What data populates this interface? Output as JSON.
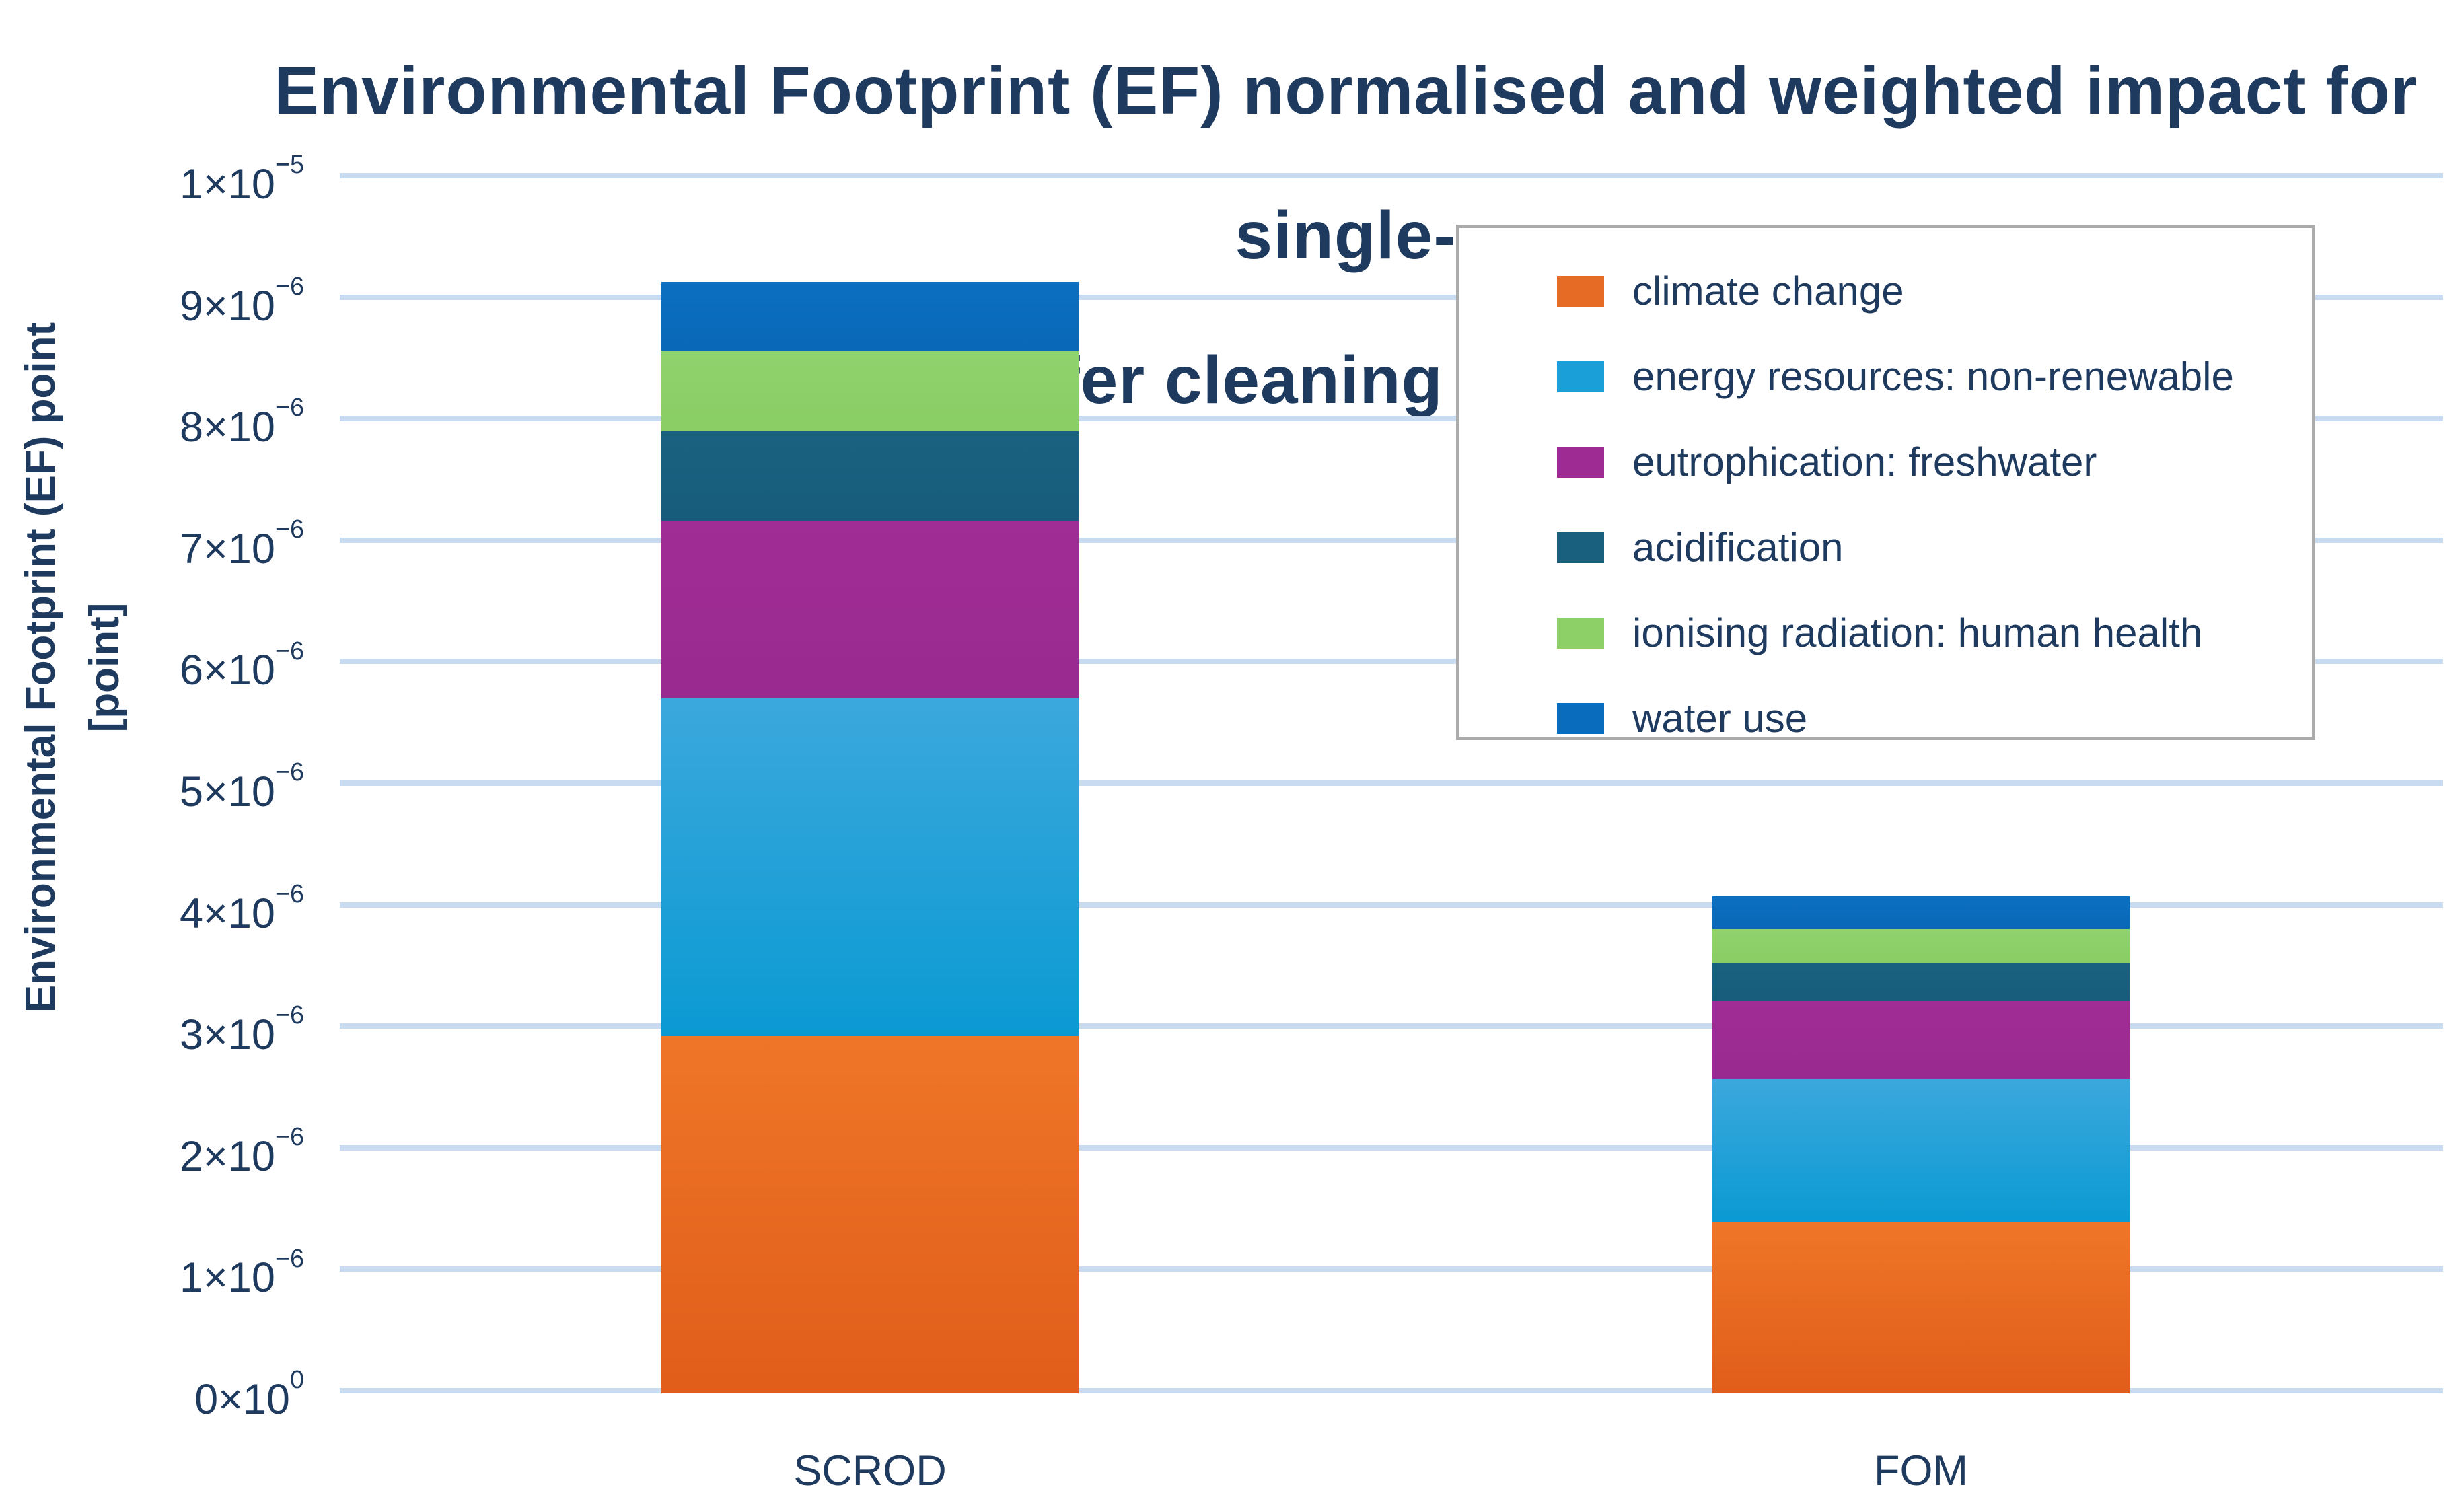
{
  "chart_data": {
    "type": "bar",
    "stacked": true,
    "title": "Environmental Footprint (EF) normalised and weighted impact for single-wafer cleaning process",
    "title_lines": [
      "Environmental Footprint (EF) normalised and weighted impact for single-",
      "wafer cleaning process"
    ],
    "ylabel": "Environmental Footprint (EF) point [point]",
    "ylabel_lines": [
      "Environmental Footprint (EF) point",
      "[point]"
    ],
    "xlabel": "",
    "categories": [
      "SCROD",
      "FOM"
    ],
    "series": [
      {
        "name": "climate change",
        "values": [
          2.94e-06,
          1.41e-06
        ],
        "color_top": "#ef7628",
        "color_bottom": "#e05d1a",
        "swatch": "#e66c26"
      },
      {
        "name": "energy resources: non-renewable",
        "values": [
          2.78e-06,
          1.18e-06
        ],
        "color_top": "#3ba8dc",
        "color_bottom": "#0b9ad3",
        "swatch": "#1b9fd8"
      },
      {
        "name": "eutrophication: freshwater",
        "values": [
          1.46e-06,
          6.4e-07
        ],
        "color_top": "#a02c96",
        "color_bottom": "#992a8f",
        "swatch": "#9d2b93"
      },
      {
        "name": "acidification",
        "values": [
          7.4e-07,
          3.1e-07
        ],
        "color_top": "#1a6180",
        "color_bottom": "#175c7b",
        "swatch": "#19607f"
      },
      {
        "name": "ionising radiation: human health",
        "values": [
          6.6e-07,
          2.8e-07
        ],
        "color_top": "#90d26d",
        "color_bottom": "#89cd64",
        "swatch": "#8dd068"
      },
      {
        "name": "water use",
        "values": [
          5.7e-07,
          2.7e-07
        ],
        "color_top": "#0c6fc0",
        "color_bottom": "#0968b8",
        "swatch": "#0a6cbd"
      }
    ],
    "totals": [
      9.15e-06,
      4.09e-06
    ],
    "ylim": [
      0,
      1e-05
    ],
    "yticks": [
      {
        "value": 1e-05,
        "base": "1×10",
        "exp": "−5"
      },
      {
        "value": 9e-06,
        "base": "9×10",
        "exp": "−6"
      },
      {
        "value": 8e-06,
        "base": "8×10",
        "exp": "−6"
      },
      {
        "value": 7e-06,
        "base": "7×10",
        "exp": "−6"
      },
      {
        "value": 6e-06,
        "base": "6×10",
        "exp": "−6"
      },
      {
        "value": 5e-06,
        "base": "5×10",
        "exp": "−6"
      },
      {
        "value": 4e-06,
        "base": "4×10",
        "exp": "−6"
      },
      {
        "value": 3e-06,
        "base": "3×10",
        "exp": "−6"
      },
      {
        "value": 2e-06,
        "base": "2×10",
        "exp": "−6"
      },
      {
        "value": 1e-06,
        "base": "1×10",
        "exp": "−6"
      },
      {
        "value": 0,
        "base": "0×10",
        "exp": "0"
      }
    ],
    "grid": true,
    "legend_position": "upper right overlay",
    "colors": {
      "text": "#1e3a5e",
      "gridline": "#c9dbf0",
      "legend_border": "#ababab",
      "background": "#ffffff"
    }
  }
}
